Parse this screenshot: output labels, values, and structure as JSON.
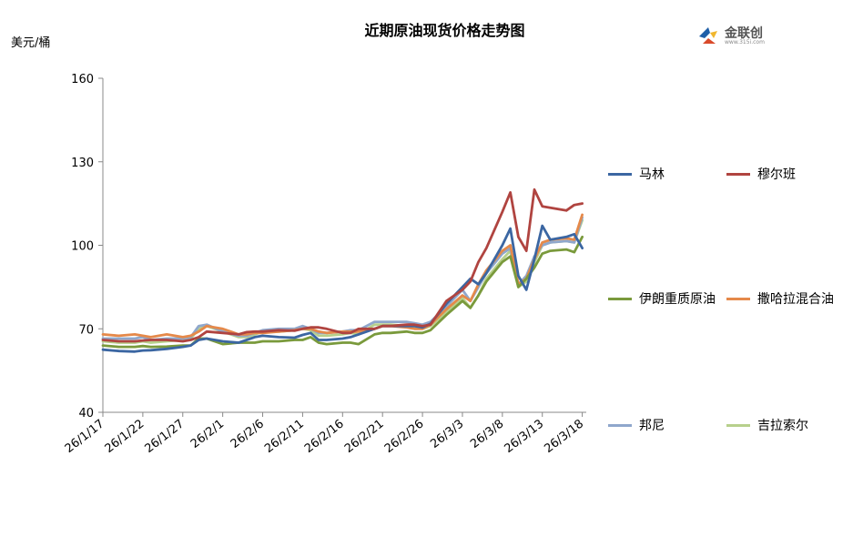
{
  "title": "近期原油现货价格走势图",
  "unit_label": "美元/桶",
  "logo": {
    "name": "金联创",
    "sub": "www.315i.com"
  },
  "chart_data": {
    "type": "line",
    "title": "近期原油现货价格走势图",
    "ylabel": "美元/桶",
    "xlabel": "",
    "ylim": [
      40,
      160
    ],
    "yticks": [
      40,
      70,
      100,
      130,
      160
    ],
    "x_tick_labels": [
      "26/1/17",
      "26/1/22",
      "26/1/27",
      "26/2/1",
      "26/2/6",
      "26/2/11",
      "26/2/16",
      "26/2/21",
      "26/2/26",
      "26/3/3",
      "26/3/8",
      "26/3/13",
      "26/3/18"
    ],
    "x_tick_days": [
      0,
      5,
      10,
      15,
      20,
      25,
      30,
      35,
      40,
      45,
      50,
      55,
      60
    ],
    "grid": false,
    "legend": "right",
    "series": [
      {
        "name": "马林",
        "color": "#3b66a2",
        "x": [
          0,
          2,
          4,
          5,
          6,
          8,
          10,
          11,
          12,
          13,
          15,
          17,
          18,
          19,
          20,
          22,
          24,
          25,
          26,
          27,
          28,
          30,
          31,
          32,
          34,
          35,
          36,
          38,
          39,
          40,
          41,
          43,
          45,
          46,
          47,
          48,
          50,
          51,
          52,
          53,
          54,
          55,
          56,
          58,
          59,
          60
        ],
        "values": [
          62.5,
          62,
          61.8,
          62.2,
          62.3,
          62.8,
          63.5,
          64,
          66,
          66.5,
          65.5,
          65,
          66,
          67,
          67.5,
          67,
          66.8,
          67.8,
          68.5,
          66,
          66,
          66.5,
          67,
          68,
          70,
          71,
          71,
          71,
          71,
          70.5,
          71.8,
          79,
          85,
          88,
          86,
          90,
          100,
          106,
          89,
          84,
          95,
          107,
          102,
          103,
          104,
          99
        ]
      },
      {
        "name": "穆尔班",
        "color": "#b04440",
        "x": [
          0,
          2,
          4,
          5,
          6,
          8,
          10,
          11,
          12,
          13,
          15,
          17,
          18,
          19,
          20,
          22,
          24,
          25,
          26,
          27,
          28,
          30,
          31,
          32,
          34,
          35,
          36,
          38,
          39,
          40,
          41,
          43,
          45,
          46,
          47,
          48,
          50,
          51,
          52,
          53,
          54,
          55,
          56,
          58,
          59,
          60
        ],
        "values": [
          66,
          65.5,
          65.5,
          65.8,
          66,
          66,
          65.5,
          66,
          67,
          69,
          68.5,
          68,
          68.8,
          69,
          69,
          69.5,
          69.3,
          70,
          70.5,
          70.5,
          70,
          68.5,
          68.5,
          70,
          70,
          71,
          71,
          71.5,
          71.5,
          71,
          71.5,
          80,
          84,
          87,
          94,
          99,
          112,
          119,
          103,
          98,
          120,
          114,
          113.5,
          112.5,
          114.5,
          115
        ]
      },
      {
        "name": "伊朗重质原油",
        "color": "#7a9a3c",
        "x": [
          0,
          2,
          4,
          5,
          6,
          8,
          10,
          11,
          12,
          13,
          15,
          17,
          18,
          19,
          20,
          22,
          24,
          25,
          26,
          27,
          28,
          30,
          31,
          32,
          34,
          35,
          36,
          38,
          39,
          40,
          41,
          43,
          45,
          46,
          47,
          48,
          50,
          51,
          52,
          53,
          54,
          55,
          56,
          58,
          59,
          60
        ],
        "values": [
          64,
          63.5,
          63.5,
          63.8,
          63.5,
          63.6,
          64,
          64,
          66.5,
          66.5,
          64.5,
          65,
          65,
          65,
          65.5,
          65.5,
          66,
          66,
          67,
          65,
          64.5,
          65,
          65,
          64.5,
          68,
          68.5,
          68.5,
          69,
          68.5,
          68.5,
          69.5,
          75,
          80,
          77.5,
          82,
          87,
          94,
          96,
          85,
          88,
          92,
          97,
          98,
          98.5,
          97.5,
          103
        ]
      },
      {
        "name": "撒哈拉混合油",
        "color": "#e5894a",
        "x": [
          0,
          2,
          4,
          5,
          6,
          8,
          10,
          11,
          12,
          13,
          15,
          17,
          18,
          19,
          20,
          22,
          24,
          25,
          26,
          27,
          28,
          30,
          31,
          32,
          34,
          35,
          36,
          38,
          39,
          40,
          41,
          43,
          45,
          46,
          47,
          48,
          50,
          51,
          52,
          53,
          54,
          55,
          56,
          58,
          59,
          60
        ],
        "values": [
          68,
          67.5,
          68,
          67.5,
          67,
          68,
          67,
          67.5,
          69,
          71,
          70,
          68,
          68,
          68.5,
          68.5,
          69,
          69.5,
          70,
          70,
          69,
          68.5,
          69,
          69,
          69,
          70,
          71,
          71,
          70.5,
          70,
          70,
          71.5,
          77,
          82,
          80,
          86,
          91,
          98,
          100,
          86,
          88,
          95,
          101,
          102,
          102.5,
          102,
          111
        ]
      },
      {
        "name": "邦尼",
        "color": "#8fa7cc",
        "x": [
          0,
          2,
          4,
          5,
          6,
          8,
          10,
          11,
          12,
          13,
          15,
          17,
          18,
          19,
          20,
          22,
          24,
          25,
          26,
          27,
          28,
          30,
          31,
          32,
          34,
          35,
          36,
          38,
          39,
          40,
          41,
          43,
          45,
          46,
          47,
          48,
          50,
          51,
          52,
          53,
          54,
          55,
          56,
          58,
          59,
          60
        ],
        "values": [
          66.5,
          66.5,
          66.5,
          67,
          66,
          66.5,
          66.5,
          67,
          71,
          71.5,
          69,
          67.5,
          67.5,
          68.5,
          69.5,
          70,
          70,
          71,
          70,
          68.5,
          68.5,
          69,
          69.5,
          69.5,
          72.5,
          72.5,
          72.5,
          72.5,
          72,
          71.5,
          72.5,
          78,
          84,
          80,
          85,
          90,
          97,
          99,
          86,
          89,
          96,
          100,
          101,
          101.5,
          101,
          110
        ]
      },
      {
        "name": "吉拉索尔",
        "color": "#b7d08c",
        "x": [
          0,
          2,
          4,
          5,
          6,
          8,
          10,
          11,
          12,
          13,
          15,
          17,
          18,
          19,
          20,
          22,
          24,
          25,
          26,
          27,
          28,
          30,
          31,
          32,
          34,
          35,
          36,
          38,
          39,
          40,
          41,
          43,
          45,
          46,
          47,
          48,
          50,
          51,
          52,
          53,
          54,
          55,
          56,
          58,
          59,
          60
        ],
        "values": [
          65.5,
          65,
          65,
          65.5,
          65,
          65.5,
          66,
          66.5,
          70,
          71,
          69,
          67,
          67,
          68,
          69,
          69,
          69.5,
          70,
          69.5,
          67.5,
          67.5,
          68,
          68.5,
          68,
          71.5,
          71.5,
          71.5,
          71,
          70.5,
          70,
          71,
          76,
          81,
          77.5,
          82,
          88,
          95,
          98,
          85,
          87,
          94,
          100,
          101,
          101.5,
          101,
          109
        ]
      }
    ]
  }
}
